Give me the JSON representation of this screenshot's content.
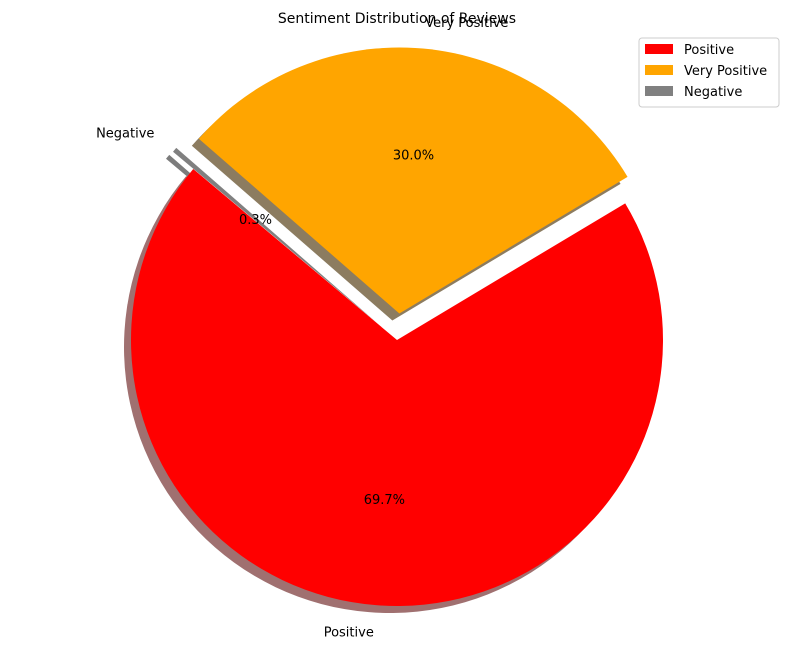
{
  "chart_data": {
    "type": "pie",
    "title": "Sentiment Distribution of Reviews",
    "categories": [
      "Positive",
      "Very Positive",
      "Negative"
    ],
    "values": [
      69.7,
      30.0,
      0.3
    ],
    "percent_labels": [
      "69.7%",
      "30.0%",
      "0.3%"
    ],
    "colors": [
      "#ff0000",
      "#ffa500",
      "#808080"
    ],
    "shadow_colors": [
      "#a07070",
      "#8c7c60",
      "#7c7c7c"
    ],
    "start_angle_deg": 140,
    "explode": [
      0,
      0.1,
      0.1
    ],
    "shadow": true,
    "legend_position": "top-right",
    "legend": [
      "Positive",
      "Very Positive",
      "Negative"
    ]
  }
}
